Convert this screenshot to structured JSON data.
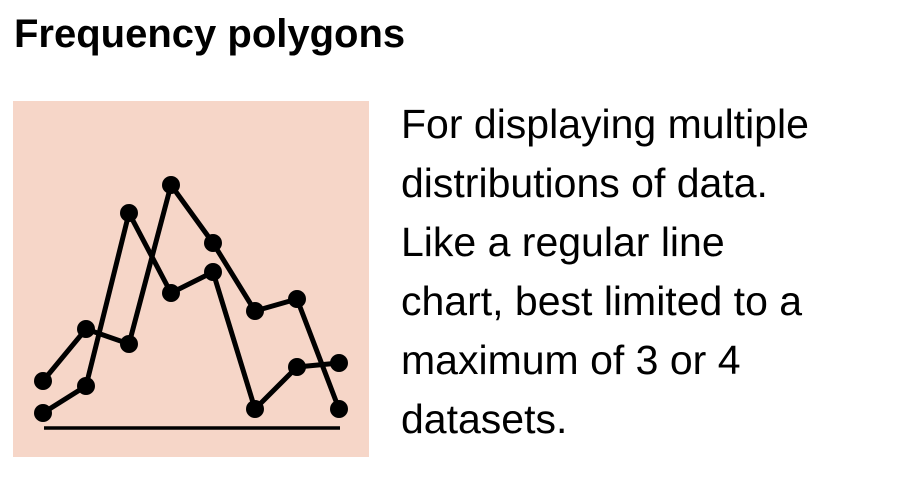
{
  "title": "Frequency polygons",
  "description_lines": [
    "For displaying multiple",
    "distributions of data.",
    "Like a regular line",
    "chart, best limited to a",
    "maximum of 3 or 4",
    "datasets."
  ],
  "icon": {
    "name": "frequency-polygon-icon",
    "background_color": "#f6d6c8",
    "stroke_color": "#000000"
  }
}
